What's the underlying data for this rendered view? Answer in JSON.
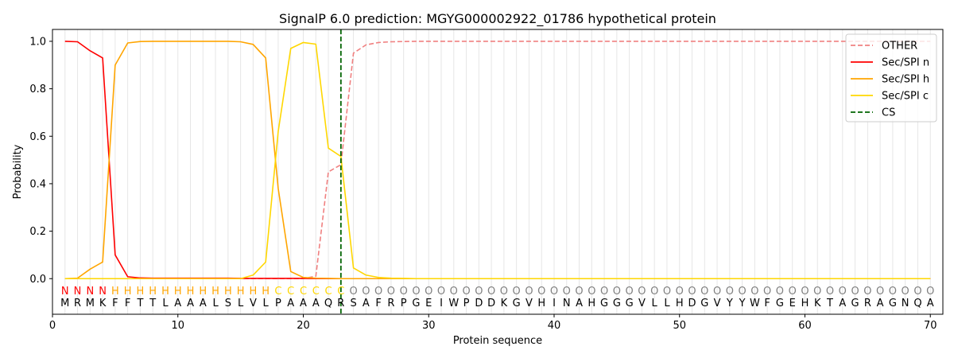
{
  "chart_data": {
    "type": "line",
    "title": "SignalP 6.0 prediction: MGYG000002922_01786 hypothetical protein",
    "xlabel": "Protein sequence",
    "ylabel": "Probability",
    "xlim": [
      0,
      71
    ],
    "ylim": [
      -0.15,
      1.05
    ],
    "x_ticks": [
      0,
      10,
      20,
      30,
      40,
      50,
      60,
      70
    ],
    "y_ticks": [
      0.0,
      0.2,
      0.4,
      0.6,
      0.8,
      1.0
    ],
    "x_tick_labels": [
      "0",
      "10",
      "20",
      "30",
      "40",
      "50",
      "60",
      "70"
    ],
    "y_tick_labels": [
      "0.0",
      "0.2",
      "0.4",
      "0.6",
      "0.8",
      "1.0"
    ],
    "grid": "vertical lines at each residue position",
    "legend_position": "top-right",
    "sequence": [
      "M",
      "R",
      "M",
      "K",
      "F",
      "F",
      "T",
      "T",
      "L",
      "A",
      "A",
      "A",
      "L",
      "S",
      "L",
      "V",
      "L",
      "P",
      "A",
      "A",
      "A",
      "Q",
      "R",
      "S",
      "A",
      "F",
      "R",
      "P",
      "G",
      "E",
      "I",
      "W",
      "P",
      "D",
      "D",
      "K",
      "G",
      "V",
      "H",
      "I",
      "N",
      "A",
      "H",
      "G",
      "G",
      "G",
      "V",
      "L",
      "L",
      "H",
      "D",
      "G",
      "V",
      "Y",
      "Y",
      "W",
      "F",
      "G",
      "E",
      "H",
      "K",
      "T",
      "A",
      "G",
      "R",
      "A",
      "G",
      "N",
      "Q",
      "A"
    ],
    "region_labels": [
      "N",
      "N",
      "N",
      "N",
      "H",
      "H",
      "H",
      "H",
      "H",
      "H",
      "H",
      "H",
      "H",
      "H",
      "H",
      "H",
      "H",
      "C",
      "C",
      "C",
      "C",
      "C",
      "C",
      "O",
      "O",
      "O",
      "O",
      "O",
      "O",
      "O",
      "O",
      "O",
      "O",
      "O",
      "O",
      "O",
      "O",
      "O",
      "O",
      "O",
      "O",
      "O",
      "O",
      "O",
      "O",
      "O",
      "O",
      "O",
      "O",
      "O",
      "O",
      "O",
      "O",
      "O",
      "O",
      "O",
      "O",
      "O",
      "O",
      "O",
      "O",
      "O",
      "O",
      "O",
      "O",
      "O",
      "O",
      "O",
      "O",
      "O"
    ],
    "region_colors": {
      "N": "#ff0000",
      "H": "#ffa500",
      "C": "#ffd700",
      "O": "#808080"
    },
    "cleavage_site": 23,
    "series": [
      {
        "name": "OTHER",
        "color": "#f08080",
        "dash": "dashed",
        "x": [
          1,
          2,
          3,
          4,
          5,
          6,
          7,
          8,
          9,
          10,
          11,
          12,
          13,
          14,
          15,
          16,
          17,
          18,
          19,
          20,
          21,
          22,
          23,
          24,
          25,
          26,
          27,
          28,
          29,
          30,
          31,
          32,
          33,
          34,
          35,
          36,
          37,
          38,
          39,
          40,
          41,
          42,
          43,
          44,
          45,
          46,
          47,
          48,
          49,
          50,
          51,
          52,
          53,
          54,
          55,
          56,
          57,
          58,
          59,
          60,
          61,
          62,
          63,
          64,
          65,
          66,
          67,
          68,
          69,
          70
        ],
        "values": [
          0,
          0,
          0,
          0,
          0,
          0,
          0,
          0,
          0,
          0,
          0,
          0,
          0,
          0,
          0,
          0,
          0,
          0,
          0,
          0,
          0.01,
          0.45,
          0.48,
          0.95,
          0.985,
          0.995,
          0.998,
          0.999,
          1,
          1,
          1,
          1,
          1,
          1,
          1,
          1,
          1,
          1,
          1,
          1,
          1,
          1,
          1,
          1,
          1,
          1,
          1,
          1,
          1,
          1,
          1,
          1,
          1,
          1,
          1,
          1,
          1,
          1,
          1,
          1,
          1,
          1,
          1,
          1,
          1,
          1,
          1,
          1,
          1,
          1
        ]
      },
      {
        "name": "Sec/SPI n",
        "color": "#ff0000",
        "dash": "solid",
        "x": [
          1,
          2,
          3,
          4,
          5,
          6,
          7,
          8,
          9,
          10,
          11,
          12,
          13,
          14,
          15,
          16,
          17,
          18,
          19,
          20,
          21,
          22,
          23,
          24,
          25,
          26,
          27,
          28,
          29,
          30,
          31,
          32,
          33,
          34,
          35,
          36,
          37,
          38,
          39,
          40,
          41,
          42,
          43,
          44,
          45,
          46,
          47,
          48,
          49,
          50,
          51,
          52,
          53,
          54,
          55,
          56,
          57,
          58,
          59,
          60,
          61,
          62,
          63,
          64,
          65,
          66,
          67,
          68,
          69,
          70
        ],
        "values": [
          1.0,
          0.998,
          0.96,
          0.93,
          0.1,
          0.008,
          0.003,
          0.002,
          0.002,
          0.002,
          0.002,
          0.002,
          0.002,
          0.002,
          0.001,
          0.001,
          0.001,
          0.001,
          0.001,
          0.001,
          0,
          0,
          0,
          0,
          0,
          0,
          0,
          0,
          0,
          0,
          0,
          0,
          0,
          0,
          0,
          0,
          0,
          0,
          0,
          0,
          0,
          0,
          0,
          0,
          0,
          0,
          0,
          0,
          0,
          0,
          0,
          0,
          0,
          0,
          0,
          0,
          0,
          0,
          0,
          0,
          0,
          0,
          0,
          0,
          0,
          0,
          0,
          0,
          0,
          0
        ]
      },
      {
        "name": "Sec/SPI h",
        "color": "#ffa500",
        "dash": "solid",
        "x": [
          1,
          2,
          3,
          4,
          5,
          6,
          7,
          8,
          9,
          10,
          11,
          12,
          13,
          14,
          15,
          16,
          17,
          18,
          19,
          20,
          21,
          22,
          23,
          24,
          25,
          26,
          27,
          28,
          29,
          30,
          31,
          32,
          33,
          34,
          35,
          36,
          37,
          38,
          39,
          40,
          41,
          42,
          43,
          44,
          45,
          46,
          47,
          48,
          49,
          50,
          51,
          52,
          53,
          54,
          55,
          56,
          57,
          58,
          59,
          60,
          61,
          62,
          63,
          64,
          65,
          66,
          67,
          68,
          69,
          70
        ],
        "values": [
          0,
          0.002,
          0.04,
          0.07,
          0.9,
          0.993,
          0.999,
          1.0,
          1.0,
          1.0,
          1.0,
          1.0,
          1.0,
          1.0,
          0.998,
          0.987,
          0.93,
          0.38,
          0.03,
          0.005,
          0.002,
          0.001,
          0,
          0,
          0,
          0,
          0,
          0,
          0,
          0,
          0,
          0,
          0,
          0,
          0,
          0,
          0,
          0,
          0,
          0,
          0,
          0,
          0,
          0,
          0,
          0,
          0,
          0,
          0,
          0,
          0,
          0,
          0,
          0,
          0,
          0,
          0,
          0,
          0,
          0,
          0,
          0,
          0,
          0,
          0,
          0,
          0,
          0,
          0,
          0
        ]
      },
      {
        "name": "Sec/SPI c",
        "color": "#ffd700",
        "dash": "solid",
        "x": [
          1,
          2,
          3,
          4,
          5,
          6,
          7,
          8,
          9,
          10,
          11,
          12,
          13,
          14,
          15,
          16,
          17,
          18,
          19,
          20,
          21,
          22,
          23,
          24,
          25,
          26,
          27,
          28,
          29,
          30,
          31,
          32,
          33,
          34,
          35,
          36,
          37,
          38,
          39,
          40,
          41,
          42,
          43,
          44,
          45,
          46,
          47,
          48,
          49,
          50,
          51,
          52,
          53,
          54,
          55,
          56,
          57,
          58,
          59,
          60,
          61,
          62,
          63,
          64,
          65,
          66,
          67,
          68,
          69,
          70
        ],
        "values": [
          0,
          0,
          0,
          0,
          0,
          0,
          0,
          0,
          0,
          0,
          0,
          0,
          0,
          0,
          0,
          0.015,
          0.07,
          0.62,
          0.97,
          0.995,
          0.988,
          0.55,
          0.515,
          0.045,
          0.015,
          0.005,
          0.002,
          0.001,
          0,
          0,
          0,
          0,
          0,
          0,
          0,
          0,
          0,
          0,
          0,
          0,
          0,
          0,
          0,
          0,
          0,
          0,
          0,
          0,
          0,
          0,
          0,
          0,
          0,
          0,
          0,
          0,
          0,
          0,
          0,
          0,
          0,
          0,
          0,
          0,
          0,
          0,
          0,
          0,
          0,
          0
        ]
      }
    ],
    "legend": [
      {
        "label": "OTHER",
        "color": "#f08080",
        "dash": "dashed"
      },
      {
        "label": "Sec/SPI n",
        "color": "#ff0000",
        "dash": "solid"
      },
      {
        "label": "Sec/SPI h",
        "color": "#ffa500",
        "dash": "solid"
      },
      {
        "label": "Sec/SPI c",
        "color": "#ffd700",
        "dash": "solid"
      },
      {
        "label": "CS",
        "color": "#006400",
        "dash": "dashed"
      }
    ]
  }
}
